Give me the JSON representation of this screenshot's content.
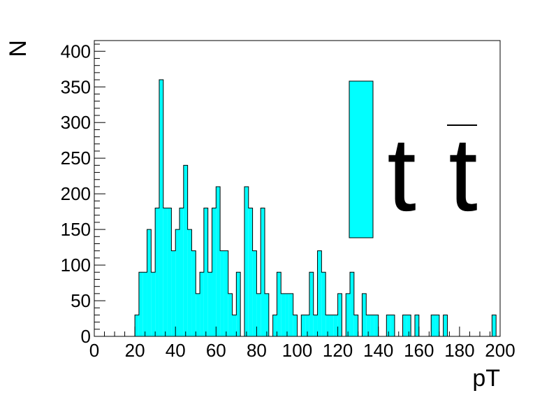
{
  "chart_data": {
    "type": "bar",
    "title": "",
    "xlabel": "pT",
    "ylabel": "N",
    "xlim": [
      0,
      200
    ],
    "ylim": [
      0,
      415
    ],
    "bin_width": 2,
    "grid": false,
    "fill_color": "#00ffff",
    "edge_color": "#000000",
    "x_ticks": [
      "0",
      "20",
      "40",
      "60",
      "80",
      "100",
      "120",
      "140",
      "160",
      "180",
      "200"
    ],
    "y_ticks": [
      "0",
      "50",
      "100",
      "150",
      "200",
      "250",
      "300",
      "350",
      "400"
    ],
    "legend": {
      "placement": "top-right",
      "entries": [
        {
          "label": "t t̄",
          "symbol": "t",
          "symbol_bar": "t"
        }
      ]
    },
    "series": [
      {
        "bins": [
          {
            "x": 20,
            "y": 30
          },
          {
            "x": 22,
            "y": 90
          },
          {
            "x": 24,
            "y": 90
          },
          {
            "x": 26,
            "y": 150
          },
          {
            "x": 28,
            "y": 90
          },
          {
            "x": 30,
            "y": 180
          },
          {
            "x": 32,
            "y": 360
          },
          {
            "x": 34,
            "y": 180
          },
          {
            "x": 36,
            "y": 180
          },
          {
            "x": 38,
            "y": 120
          },
          {
            "x": 40,
            "y": 150
          },
          {
            "x": 42,
            "y": 180
          },
          {
            "x": 44,
            "y": 240
          },
          {
            "x": 46,
            "y": 150
          },
          {
            "x": 48,
            "y": 120
          },
          {
            "x": 50,
            "y": 60
          },
          {
            "x": 52,
            "y": 90
          },
          {
            "x": 54,
            "y": 180
          },
          {
            "x": 56,
            "y": 90
          },
          {
            "x": 58,
            "y": 180
          },
          {
            "x": 60,
            "y": 210
          },
          {
            "x": 62,
            "y": 120
          },
          {
            "x": 64,
            "y": 120
          },
          {
            "x": 66,
            "y": 60
          },
          {
            "x": 68,
            "y": 30
          },
          {
            "x": 70,
            "y": 90
          },
          {
            "x": 72,
            "y": 0
          },
          {
            "x": 74,
            "y": 210
          },
          {
            "x": 76,
            "y": 180
          },
          {
            "x": 78,
            "y": 120
          },
          {
            "x": 80,
            "y": 60
          },
          {
            "x": 82,
            "y": 180
          },
          {
            "x": 84,
            "y": 60
          },
          {
            "x": 86,
            "y": 0
          },
          {
            "x": 88,
            "y": 30
          },
          {
            "x": 90,
            "y": 90
          },
          {
            "x": 92,
            "y": 60
          },
          {
            "x": 94,
            "y": 60
          },
          {
            "x": 96,
            "y": 60
          },
          {
            "x": 98,
            "y": 30
          },
          {
            "x": 100,
            "y": 0
          },
          {
            "x": 102,
            "y": 30
          },
          {
            "x": 104,
            "y": 30
          },
          {
            "x": 106,
            "y": 90
          },
          {
            "x": 108,
            "y": 30
          },
          {
            "x": 110,
            "y": 120
          },
          {
            "x": 112,
            "y": 90
          },
          {
            "x": 114,
            "y": 30
          },
          {
            "x": 116,
            "y": 30
          },
          {
            "x": 118,
            "y": 30
          },
          {
            "x": 120,
            "y": 60
          },
          {
            "x": 122,
            "y": 0
          },
          {
            "x": 124,
            "y": 60
          },
          {
            "x": 126,
            "y": 90
          },
          {
            "x": 128,
            "y": 30
          },
          {
            "x": 130,
            "y": 0
          },
          {
            "x": 132,
            "y": 60
          },
          {
            "x": 134,
            "y": 30
          },
          {
            "x": 136,
            "y": 30
          },
          {
            "x": 138,
            "y": 30
          },
          {
            "x": 140,
            "y": 0
          },
          {
            "x": 142,
            "y": 0
          },
          {
            "x": 144,
            "y": 30
          },
          {
            "x": 146,
            "y": 30
          },
          {
            "x": 148,
            "y": 0
          },
          {
            "x": 150,
            "y": 0
          },
          {
            "x": 152,
            "y": 30
          },
          {
            "x": 154,
            "y": 30
          },
          {
            "x": 156,
            "y": 0
          },
          {
            "x": 158,
            "y": 30
          },
          {
            "x": 160,
            "y": 0
          },
          {
            "x": 162,
            "y": 0
          },
          {
            "x": 164,
            "y": 0
          },
          {
            "x": 166,
            "y": 30
          },
          {
            "x": 168,
            "y": 30
          },
          {
            "x": 170,
            "y": 0
          },
          {
            "x": 172,
            "y": 30
          },
          {
            "x": 174,
            "y": 0
          },
          {
            "x": 176,
            "y": 0
          },
          {
            "x": 178,
            "y": 0
          },
          {
            "x": 180,
            "y": 0
          },
          {
            "x": 182,
            "y": 0
          },
          {
            "x": 184,
            "y": 0
          },
          {
            "x": 186,
            "y": 0
          },
          {
            "x": 188,
            "y": 0
          },
          {
            "x": 190,
            "y": 0
          },
          {
            "x": 192,
            "y": 0
          },
          {
            "x": 194,
            "y": 0
          },
          {
            "x": 196,
            "y": 30
          },
          {
            "x": 198,
            "y": 0
          }
        ]
      }
    ]
  }
}
